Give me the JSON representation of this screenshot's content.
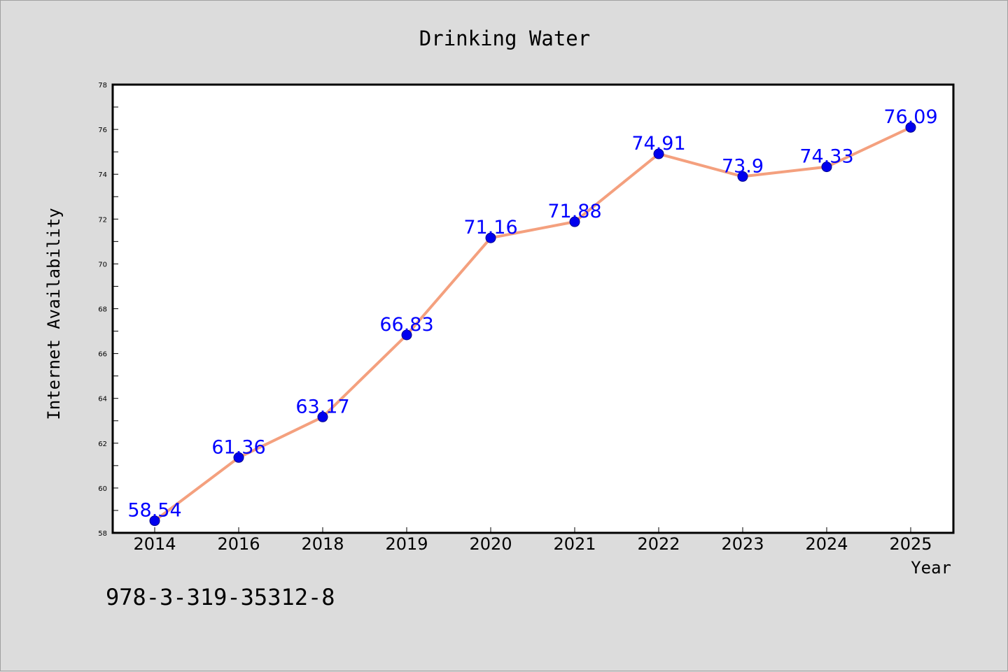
{
  "footer": {
    "code": "978-3-319-35312-8"
  },
  "colors": {
    "line": "#f4a07e",
    "marker": "#0000ee",
    "label": "#0000ff",
    "background": "#dcdcdc",
    "plot_bg": "#ffffff"
  },
  "chart_data": {
    "type": "line",
    "title": "Drinking Water",
    "xlabel": "Year",
    "ylabel": "Internet Availability",
    "categories": [
      "2014",
      "2016",
      "2018",
      "2019",
      "2020",
      "2021",
      "2022",
      "2023",
      "2024",
      "2025"
    ],
    "series": [
      {
        "values": [
          58.54,
          61.36,
          63.17,
          66.83,
          71.16,
          71.88,
          74.91,
          73.9,
          74.33,
          76.09
        ],
        "labels": [
          "58.54",
          "61.36",
          "63.17",
          "66.83",
          "71.16",
          "71.88",
          "74.91",
          "73.9",
          "74.33",
          "76.09"
        ]
      }
    ],
    "ylim": [
      58,
      78
    ],
    "yticks": [
      "58",
      "60",
      "62",
      "64",
      "66",
      "68",
      "70",
      "72",
      "74",
      "76",
      "78"
    ],
    "grid": false,
    "legend": "none"
  }
}
